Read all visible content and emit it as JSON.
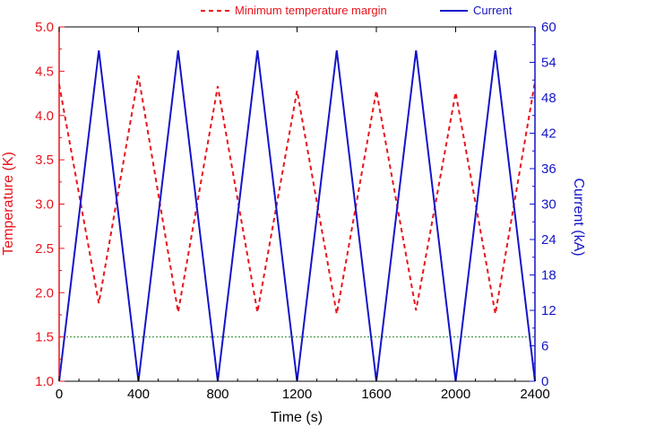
{
  "chart_data": {
    "type": "line",
    "xlabel": "Time (s)",
    "ylabel_left": "Temperature (K)",
    "ylabel_right": "Current (kA)",
    "xlim": [
      0,
      2400
    ],
    "ylim_left": [
      1.0,
      5.0
    ],
    "ylim_right": [
      0,
      60
    ],
    "x_ticks": [
      "0",
      "400",
      "800",
      "1200",
      "1600",
      "2000",
      "2400"
    ],
    "y_left_ticks": [
      "1.0",
      "1.5",
      "2.0",
      "2.5",
      "3.0",
      "3.5",
      "4.0",
      "4.5",
      "5.0"
    ],
    "y_right_ticks": [
      "0",
      "6",
      "12",
      "18",
      "24",
      "30",
      "36",
      "42",
      "48",
      "54",
      "60"
    ],
    "legend_placement": "top",
    "colors": {
      "temperature": "#e8141c",
      "current": "#1414c8",
      "threshold": "#2e8b2e",
      "axis": "#000000"
    },
    "series": [
      {
        "name": "Minimum temperature margin",
        "axis": "left",
        "style": "dashed",
        "x": [
          0,
          200,
          400,
          600,
          800,
          1000,
          1200,
          1400,
          1600,
          1800,
          2000,
          2200,
          2400
        ],
        "y": [
          4.35,
          1.88,
          4.45,
          1.78,
          4.33,
          1.78,
          4.28,
          1.76,
          4.28,
          1.8,
          4.26,
          1.76,
          4.38
        ]
      },
      {
        "name": "Current",
        "axis": "right",
        "style": "solid",
        "x": [
          0,
          200,
          400,
          600,
          800,
          1000,
          1200,
          1400,
          1600,
          1800,
          2000,
          2200,
          2400
        ],
        "y": [
          0,
          56,
          0,
          56,
          0,
          56,
          0,
          56,
          0,
          56,
          0,
          56,
          0
        ]
      }
    ],
    "reference_lines": [
      {
        "axis": "left",
        "y": 1.5,
        "style": "dotted",
        "color": "#2e8b2e"
      }
    ]
  }
}
